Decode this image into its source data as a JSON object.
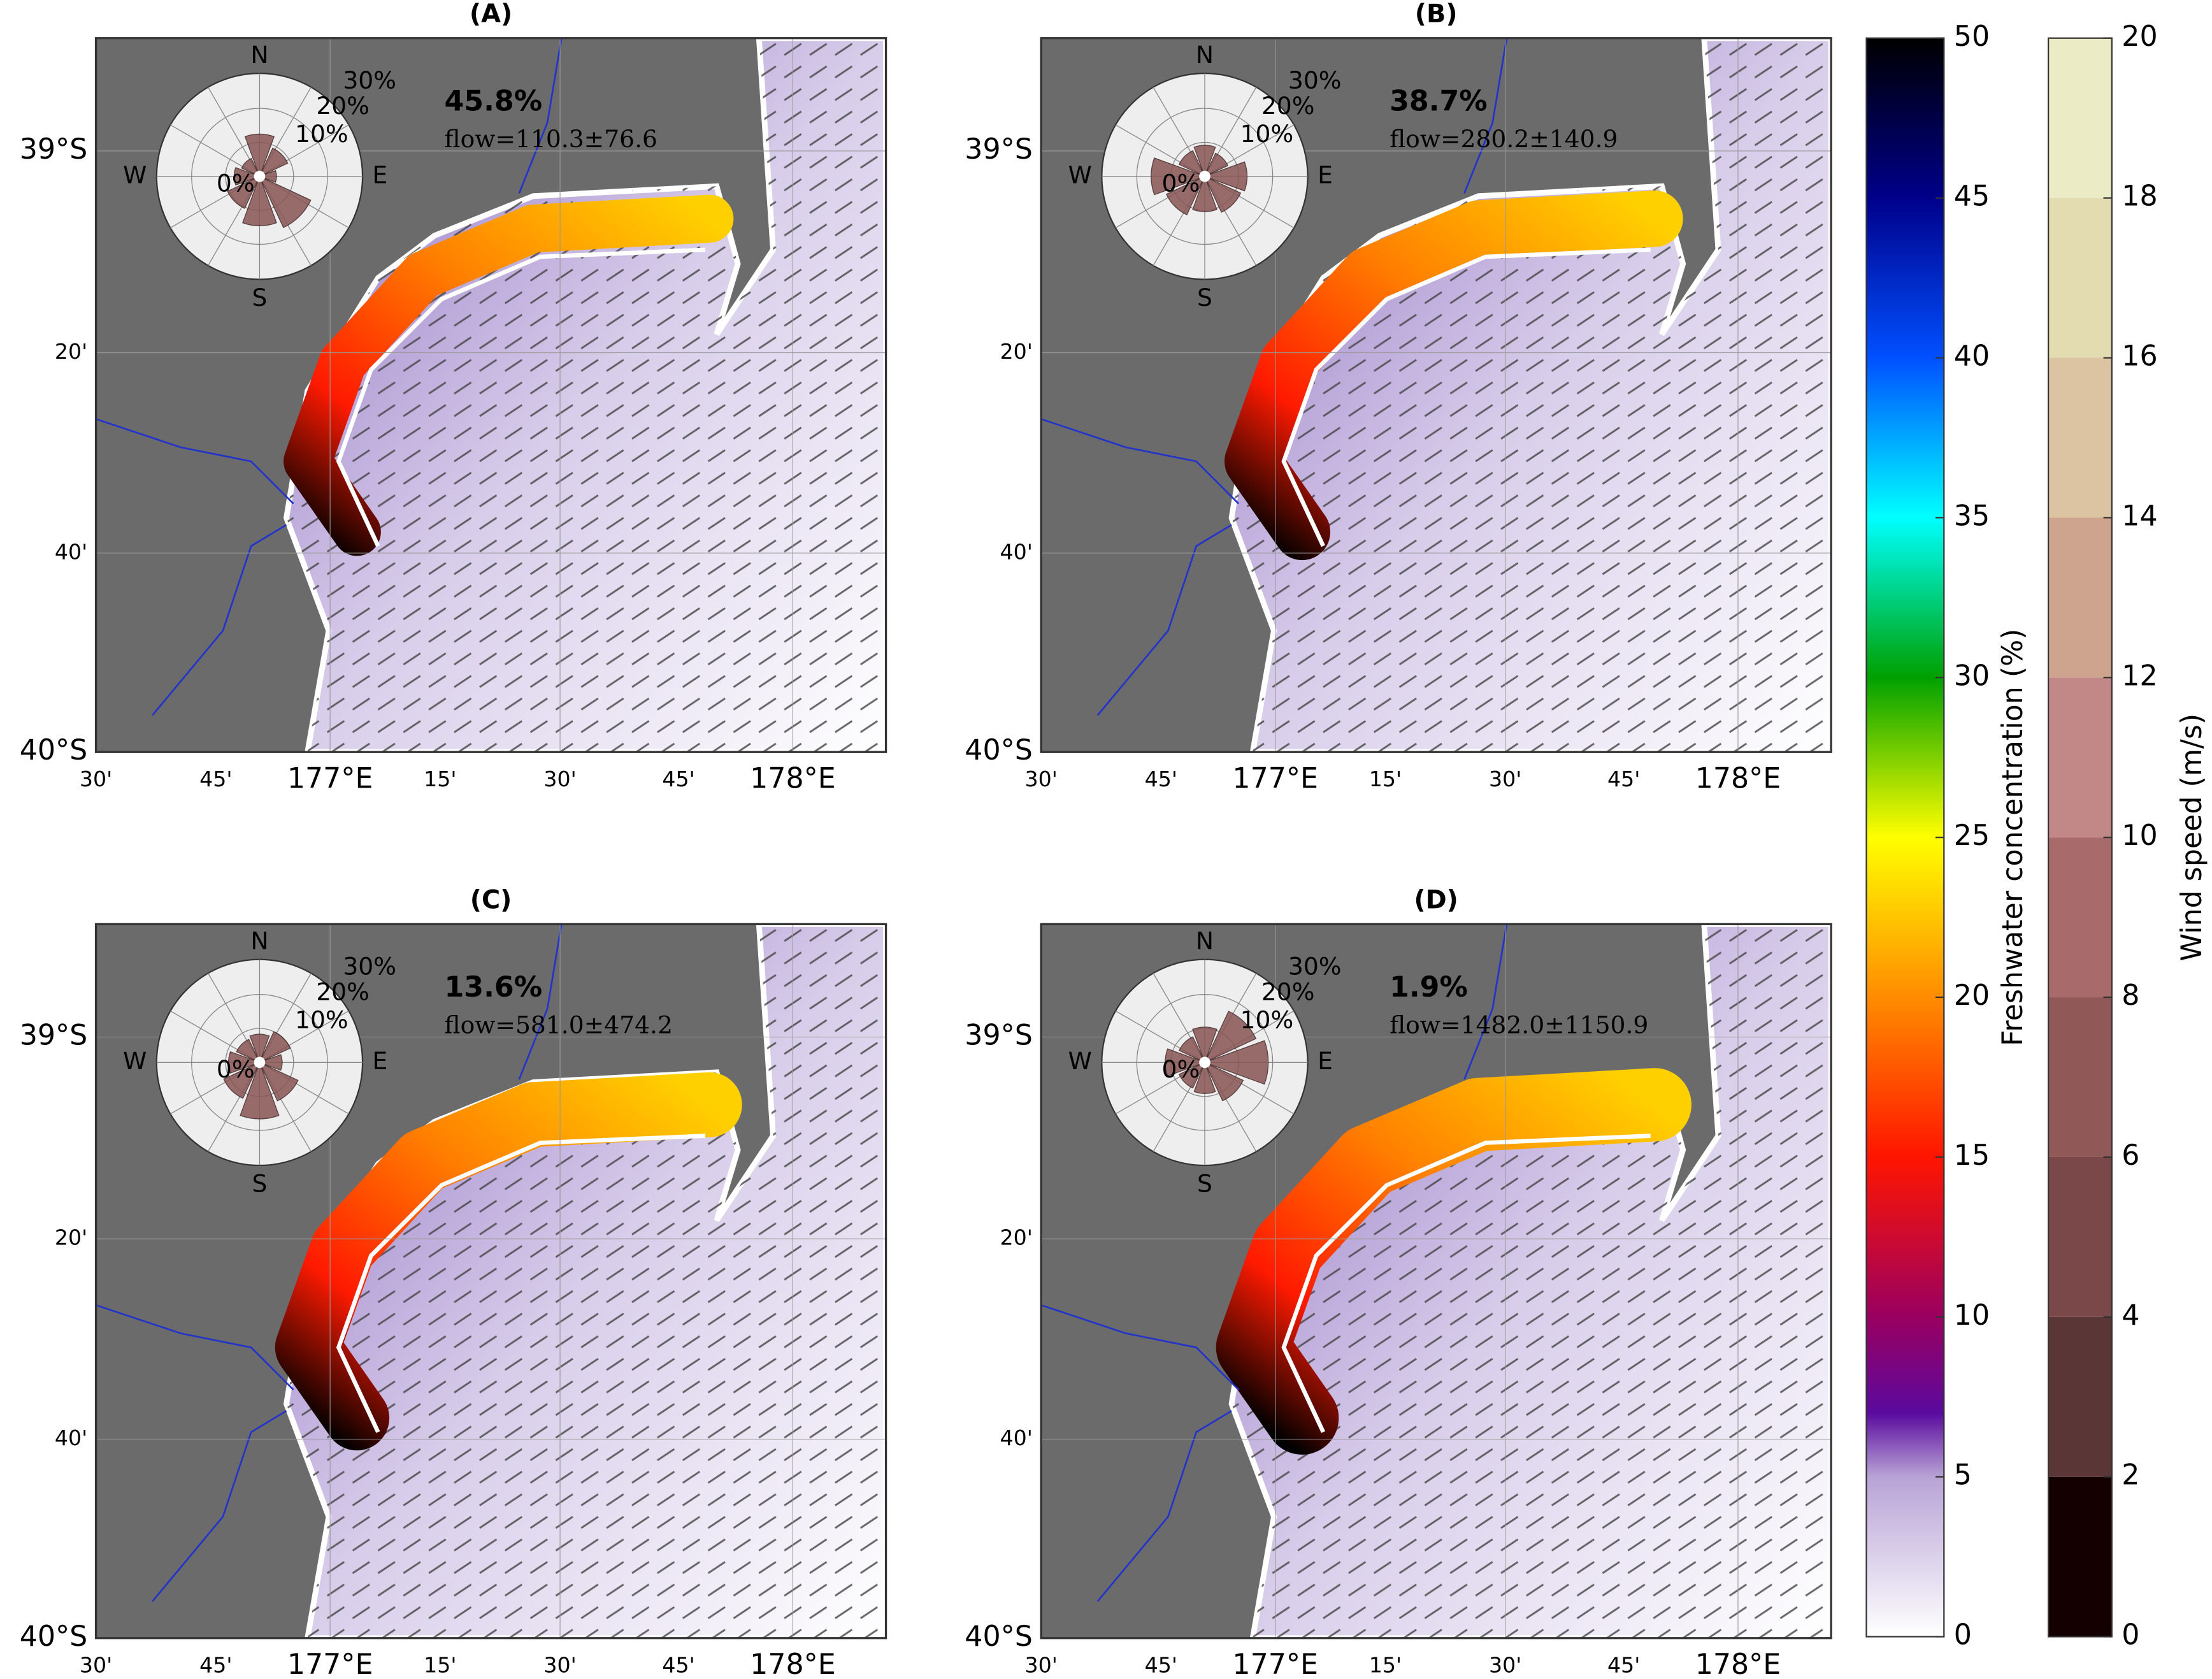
{
  "panels": [
    {
      "label": "(A)",
      "percent": "45.8%",
      "flow": "flow=110.3±76.6"
    },
    {
      "label": "(B)",
      "percent": "38.7%",
      "flow": "flow=280.2±140.9"
    },
    {
      "label": "(C)",
      "percent": "13.6%",
      "flow": "flow=581.0±474.2"
    },
    {
      "label": "(D)",
      "percent": "1.9%",
      "flow": "flow=1482.0±1150.9"
    }
  ],
  "compass": {
    "north": "N",
    "south": "S",
    "west": "W",
    "east": "E"
  },
  "rose_rings": [
    "30%",
    "20%",
    "10%",
    "0%"
  ],
  "lat_labels": [
    "39°S",
    "20'",
    "40'",
    "40°S"
  ],
  "lon_labels": [
    "30'",
    "45'",
    "177°E",
    "15'",
    "30'",
    "45'",
    "178°E"
  ],
  "freshwater_colorbar": {
    "label": "Freshwater concentration (%)",
    "range": [
      0,
      50
    ],
    "ticks": [
      0,
      5,
      10,
      15,
      20,
      25,
      30,
      35,
      40,
      45,
      50
    ]
  },
  "wind_colorbar": {
    "label": "Wind speed (m/s)",
    "range": [
      0,
      20
    ],
    "ticks": [
      0,
      2,
      4,
      6,
      8,
      10,
      12,
      14,
      16,
      18,
      20
    ]
  }
}
